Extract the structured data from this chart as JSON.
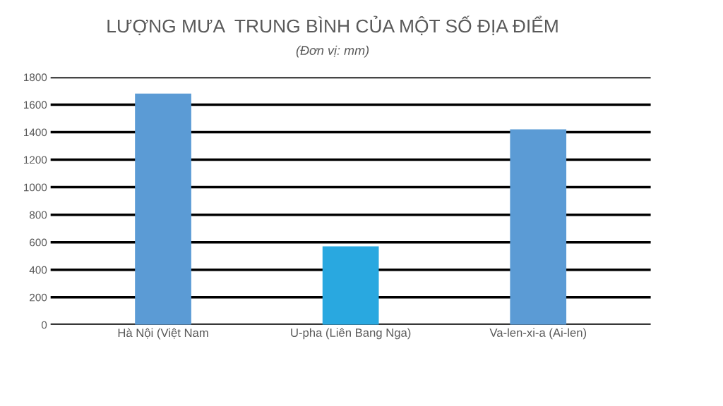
{
  "chart_data": {
    "type": "bar",
    "title": "LƯỢNG MƯA  TRUNG BÌNH CỦA MỘT SỐ ĐỊA ĐIỂM",
    "subtitle": "(Đơn vị: mm)",
    "categories": [
      "Hà Nội (Việt Nam",
      "U-pha (Liên Bang Nga)",
      "Va-len-xi-a (Ai-len)"
    ],
    "values": [
      1680,
      570,
      1420
    ],
    "colors": [
      "#5b9bd5",
      "#29a8e0",
      "#5b9bd5"
    ],
    "ylim": [
      0,
      1800
    ],
    "yticks": [
      0,
      200,
      400,
      600,
      800,
      1000,
      1200,
      1400,
      1600,
      1800
    ],
    "grid": "y"
  }
}
